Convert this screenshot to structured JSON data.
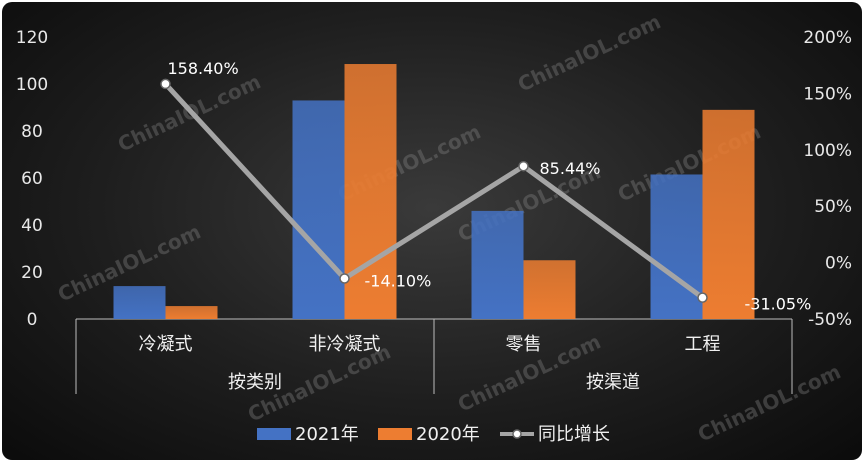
{
  "watermark": "ChinaIOL.com",
  "colors": {
    "series_2021": "#4472C4",
    "series_2020": "#ED7D31",
    "growth_line": "#A5A5A5"
  },
  "legend": {
    "items": [
      "2021年",
      "2020年",
      "同比增长"
    ]
  },
  "chart_data": {
    "type": "bar",
    "categories": [
      "冷凝式",
      "非冷凝式",
      "零售",
      "工程"
    ],
    "groups": [
      {
        "label": "按类别",
        "categories": [
          "冷凝式",
          "非冷凝式"
        ]
      },
      {
        "label": "按渠道",
        "categories": [
          "零售",
          "工程"
        ]
      }
    ],
    "series": [
      {
        "name": "2021年",
        "type": "bar",
        "axis": "left",
        "values": [
          14,
          93,
          46,
          61.5
        ]
      },
      {
        "name": "2020年",
        "type": "bar",
        "axis": "left",
        "values": [
          5.5,
          108.5,
          25,
          89
        ]
      },
      {
        "name": "同比增长",
        "type": "line",
        "axis": "right",
        "values": [
          158.4,
          -14.1,
          85.44,
          -31.05
        ],
        "labels": [
          "158.40%",
          "-14.10%",
          "85.44%",
          "-31.05%"
        ]
      }
    ],
    "y_left": {
      "min": 0,
      "max": 120,
      "ticks": [
        "0",
        "20",
        "40",
        "60",
        "80",
        "100",
        "120"
      ]
    },
    "y_right": {
      "min": -50,
      "max": 200,
      "ticks": [
        "-50%",
        "0%",
        "50%",
        "100%",
        "150%",
        "200%"
      ]
    },
    "grid": false,
    "legend_position": "bottom"
  }
}
